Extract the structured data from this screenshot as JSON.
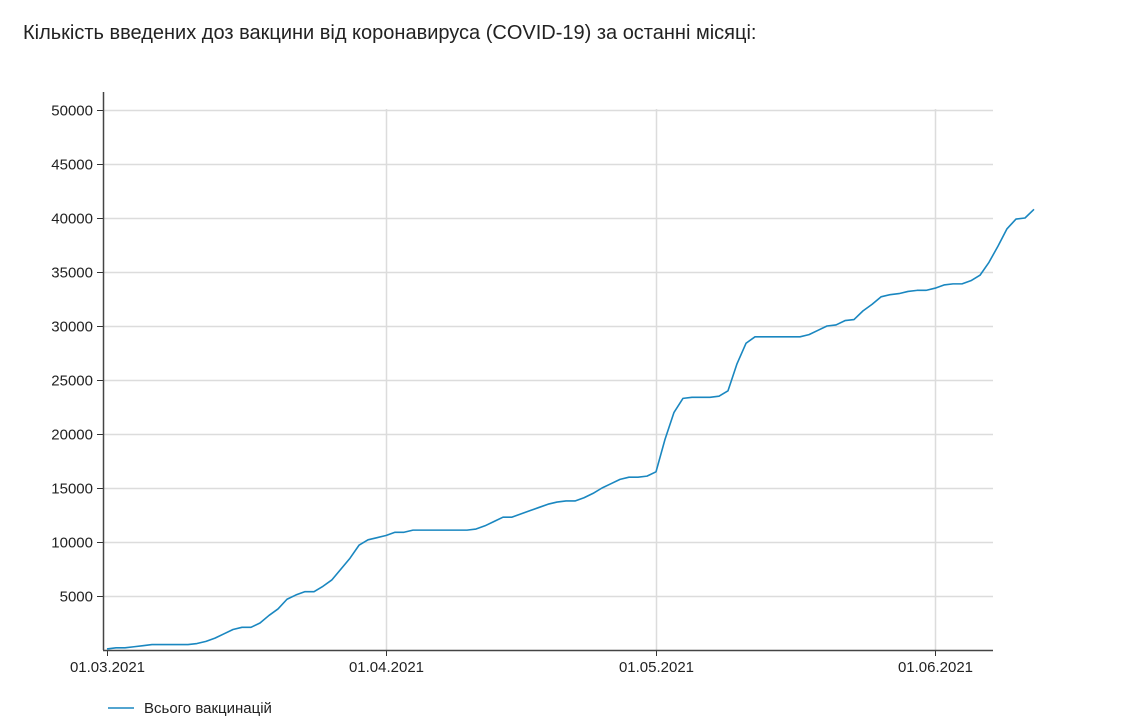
{
  "page": {
    "title": "Кількість введених доз вакцини від коронавируса (COVID-19) за останні місяці:"
  },
  "chart_data": {
    "type": "line",
    "title": "Кількість введених доз вакцини від коронавируса (COVID-19) за останні місяці:",
    "xlabel": "",
    "ylabel": "",
    "x_range": [
      "2021-03-01",
      "2021-06-07"
    ],
    "ylim": [
      0,
      50000
    ],
    "y_ticks": [
      5000,
      10000,
      15000,
      20000,
      25000,
      30000,
      35000,
      40000,
      45000,
      50000
    ],
    "y_tick_labels": [
      "5000",
      "10000",
      "15000",
      "20000",
      "25000",
      "30000",
      "35000",
      "40000",
      "45000",
      "50000"
    ],
    "x_ticks": [
      "2021-03-01",
      "2021-04-01",
      "2021-05-01",
      "2021-06-01"
    ],
    "x_tick_labels": [
      "01.03.2021",
      "01.04.2021",
      "01.05.2021",
      "01.06.2021"
    ],
    "grid": true,
    "legend_position": "bottom-left",
    "series": [
      {
        "name": "Всього вакцинацій",
        "color": "#1a87c0",
        "points": [
          [
            "2021-03-01",
            100
          ],
          [
            "2021-03-02",
            200
          ],
          [
            "2021-03-03",
            200
          ],
          [
            "2021-03-04",
            300
          ],
          [
            "2021-03-05",
            400
          ],
          [
            "2021-03-06",
            500
          ],
          [
            "2021-03-07",
            500
          ],
          [
            "2021-03-08",
            500
          ],
          [
            "2021-03-09",
            500
          ],
          [
            "2021-03-10",
            500
          ],
          [
            "2021-03-11",
            600
          ],
          [
            "2021-03-12",
            800
          ],
          [
            "2021-03-13",
            1100
          ],
          [
            "2021-03-14",
            1500
          ],
          [
            "2021-03-15",
            1900
          ],
          [
            "2021-03-16",
            2100
          ],
          [
            "2021-03-17",
            2100
          ],
          [
            "2021-03-18",
            2500
          ],
          [
            "2021-03-19",
            3200
          ],
          [
            "2021-03-20",
            3800
          ],
          [
            "2021-03-21",
            4700
          ],
          [
            "2021-03-22",
            5100
          ],
          [
            "2021-03-23",
            5400
          ],
          [
            "2021-03-24",
            5400
          ],
          [
            "2021-03-25",
            5900
          ],
          [
            "2021-03-26",
            6500
          ],
          [
            "2021-03-27",
            7500
          ],
          [
            "2021-03-28",
            8500
          ],
          [
            "2021-03-29",
            9700
          ],
          [
            "2021-03-30",
            10200
          ],
          [
            "2021-03-31",
            10400
          ],
          [
            "2021-04-01",
            10600
          ],
          [
            "2021-04-02",
            10900
          ],
          [
            "2021-04-03",
            10900
          ],
          [
            "2021-04-04",
            11100
          ],
          [
            "2021-04-05",
            11100
          ],
          [
            "2021-04-06",
            11100
          ],
          [
            "2021-04-07",
            11100
          ],
          [
            "2021-04-08",
            11100
          ],
          [
            "2021-04-09",
            11100
          ],
          [
            "2021-04-10",
            11100
          ],
          [
            "2021-04-11",
            11200
          ],
          [
            "2021-04-12",
            11500
          ],
          [
            "2021-04-13",
            11900
          ],
          [
            "2021-04-14",
            12300
          ],
          [
            "2021-04-15",
            12300
          ],
          [
            "2021-04-16",
            12600
          ],
          [
            "2021-04-17",
            12900
          ],
          [
            "2021-04-18",
            13200
          ],
          [
            "2021-04-19",
            13500
          ],
          [
            "2021-04-20",
            13700
          ],
          [
            "2021-04-21",
            13800
          ],
          [
            "2021-04-22",
            13800
          ],
          [
            "2021-04-23",
            14100
          ],
          [
            "2021-04-24",
            14500
          ],
          [
            "2021-04-25",
            15000
          ],
          [
            "2021-04-26",
            15400
          ],
          [
            "2021-04-27",
            15800
          ],
          [
            "2021-04-28",
            16000
          ],
          [
            "2021-04-29",
            16000
          ],
          [
            "2021-04-30",
            16100
          ],
          [
            "2021-05-01",
            16500
          ],
          [
            "2021-05-02",
            19500
          ],
          [
            "2021-05-03",
            22000
          ],
          [
            "2021-05-04",
            23300
          ],
          [
            "2021-05-05",
            23400
          ],
          [
            "2021-05-06",
            23400
          ],
          [
            "2021-05-07",
            23400
          ],
          [
            "2021-05-08",
            23500
          ],
          [
            "2021-05-09",
            24000
          ],
          [
            "2021-05-10",
            26500
          ],
          [
            "2021-05-11",
            28400
          ],
          [
            "2021-05-12",
            29000
          ],
          [
            "2021-05-13",
            29000
          ],
          [
            "2021-05-14",
            29000
          ],
          [
            "2021-05-15",
            29000
          ],
          [
            "2021-05-16",
            29000
          ],
          [
            "2021-05-17",
            29000
          ],
          [
            "2021-05-18",
            29200
          ],
          [
            "2021-05-19",
            29600
          ],
          [
            "2021-05-20",
            30000
          ],
          [
            "2021-05-21",
            30100
          ],
          [
            "2021-05-22",
            30500
          ],
          [
            "2021-05-23",
            30600
          ],
          [
            "2021-05-24",
            31400
          ],
          [
            "2021-05-25",
            32000
          ],
          [
            "2021-05-26",
            32700
          ],
          [
            "2021-05-27",
            32900
          ],
          [
            "2021-05-28",
            33000
          ],
          [
            "2021-05-29",
            33200
          ],
          [
            "2021-05-30",
            33300
          ],
          [
            "2021-05-31",
            33300
          ],
          [
            "2021-06-01",
            33500
          ],
          [
            "2021-06-02",
            33800
          ],
          [
            "2021-06-03",
            33900
          ],
          [
            "2021-06-04",
            33900
          ],
          [
            "2021-06-05",
            34200
          ],
          [
            "2021-06-06",
            34700
          ],
          [
            "2021-06-07",
            35900
          ],
          [
            "2021-06-08",
            37400
          ],
          [
            "2021-06-09",
            39000
          ],
          [
            "2021-06-10",
            39900
          ],
          [
            "2021-06-11",
            40000
          ],
          [
            "2021-06-12",
            40800
          ]
        ]
      }
    ]
  }
}
